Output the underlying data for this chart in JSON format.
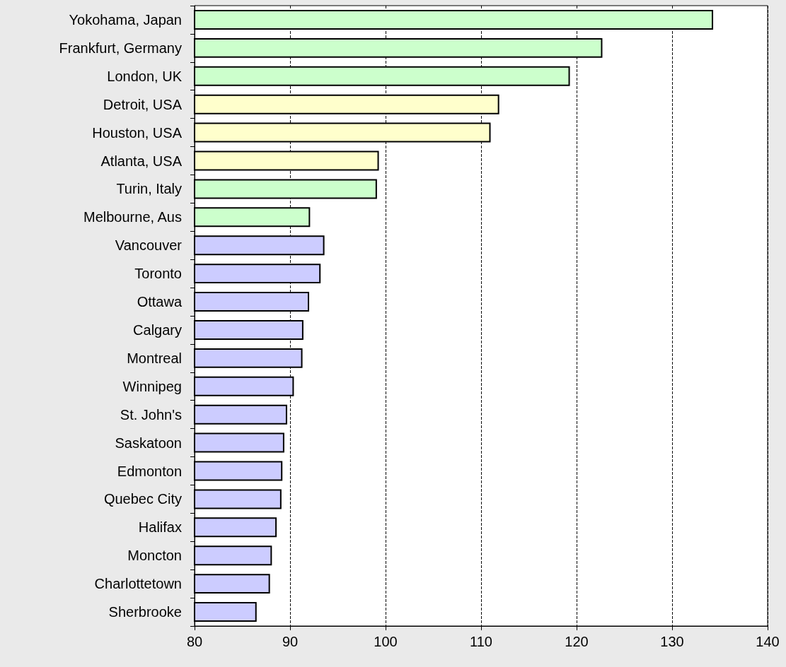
{
  "chart_data": {
    "type": "bar",
    "orientation": "horizontal",
    "categories": [
      "Yokohama, Japan",
      "Frankfurt, Germany",
      "London, UK",
      "Detroit, USA",
      "Houston, USA",
      "Atlanta, USA",
      "Turin, Italy",
      "Melbourne, Aus",
      "Vancouver",
      "Toronto",
      "Ottawa",
      "Calgary",
      "Montreal",
      "Winnipeg",
      "St. John's",
      "Saskatoon",
      "Edmonton",
      "Quebec City",
      "Halifax",
      "Moncton",
      "Charlottetown",
      "Sherbrooke"
    ],
    "values": [
      134.3,
      122.7,
      119.3,
      111.9,
      111.0,
      99.3,
      99.1,
      92.1,
      93.6,
      93.2,
      92.0,
      91.4,
      91.3,
      90.4,
      89.7,
      89.4,
      89.2,
      89.1,
      88.6,
      88.1,
      87.9,
      86.5
    ],
    "colors": [
      "#ccffcc",
      "#ccffcc",
      "#ccffcc",
      "#ffffcc",
      "#ffffcc",
      "#ffffcc",
      "#ccffcc",
      "#ccffcc",
      "#ccccff",
      "#ccccff",
      "#ccccff",
      "#ccccff",
      "#ccccff",
      "#ccccff",
      "#ccccff",
      "#ccccff",
      "#ccccff",
      "#ccccff",
      "#ccccff",
      "#ccccff",
      "#ccccff",
      "#ccccff"
    ],
    "xlim": [
      80,
      140
    ],
    "xticks": [
      80,
      90,
      100,
      110,
      120,
      130,
      140
    ],
    "grid": "x"
  }
}
